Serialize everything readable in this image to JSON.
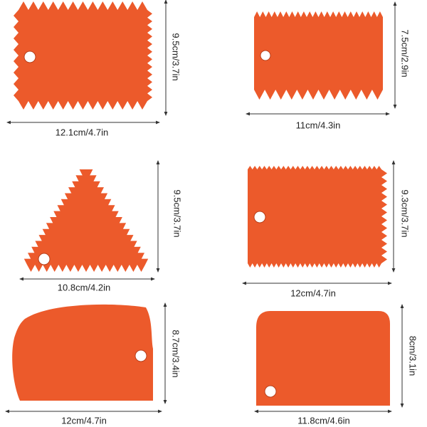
{
  "items": [
    {
      "width": "12.1cm/4.7in",
      "height": "9.5cm/3.7in"
    },
    {
      "width": "11cm/4.3in",
      "height": "7.5cm/2.9in"
    },
    {
      "width": "10.8cm/4.2in",
      "height": "9.5cm/3.7in"
    },
    {
      "width": "12cm/4.7in",
      "height": "9.3cm/3.7in"
    },
    {
      "width": "12cm/4.7in",
      "height": "8.7cm/3.4in"
    },
    {
      "width": "11.8cm/4.6in",
      "height": "8cm/3.1in"
    }
  ]
}
